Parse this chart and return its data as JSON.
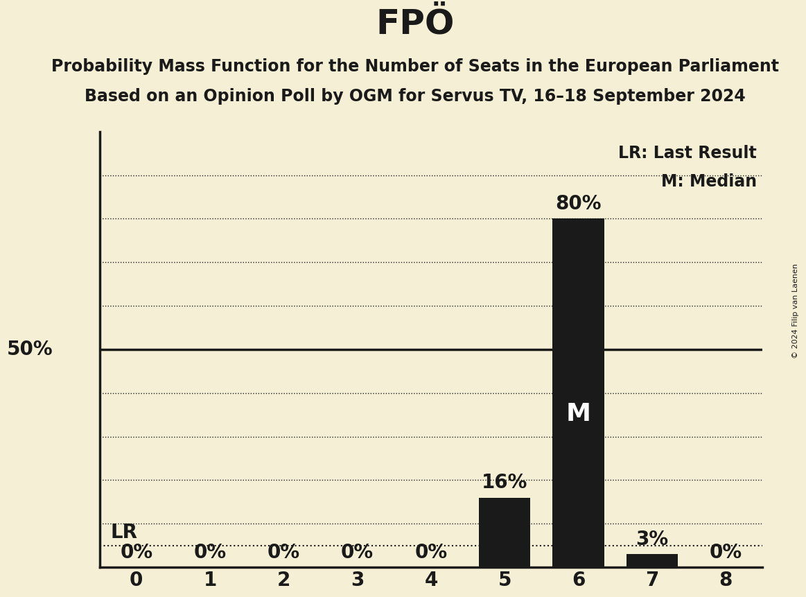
{
  "title": "FPÖ",
  "subtitle_line1": "Probability Mass Function for the Number of Seats in the European Parliament",
  "subtitle_line2": "Based on an Opinion Poll by OGM for Servus TV, 16–18 September 2024",
  "copyright": "© 2024 Filip van Laenen",
  "categories": [
    0,
    1,
    2,
    3,
    4,
    5,
    6,
    7,
    8
  ],
  "values": [
    0,
    0,
    0,
    0,
    0,
    16,
    80,
    3,
    0
  ],
  "bar_color": "#1a1a1a",
  "background_color": "#f5f0d5",
  "y_label_50": "50%",
  "ytick_dotted": [
    10,
    20,
    30,
    40,
    60,
    70,
    80,
    90
  ],
  "y_solid_line": 50,
  "lr_value": 5,
  "median_seat": 6,
  "legend_lr": "LR: Last Result",
  "legend_m": "M: Median",
  "bar_labels": [
    "0%",
    "0%",
    "0%",
    "0%",
    "0%",
    "16%",
    "80%",
    "3%",
    "0%"
  ],
  "title_fontsize": 36,
  "subtitle_fontsize": 17,
  "label_fontsize": 20,
  "tick_fontsize": 20,
  "legend_fontsize": 17,
  "median_fontsize": 26,
  "ylim": [
    0,
    100
  ],
  "xlim": [
    -0.5,
    8.5
  ]
}
